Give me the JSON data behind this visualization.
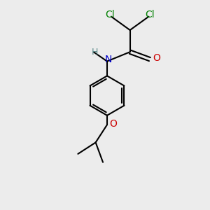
{
  "bg_color": "#ececec",
  "bond_color": "#000000",
  "bond_width": 1.5,
  "atom_colors": {
    "Cl": "#008000",
    "N": "#0000cc",
    "O_carbonyl": "#cc0000",
    "O_ether": "#cc0000",
    "H": "#5a8a8a",
    "C": "#000000"
  },
  "font_size_main": 10,
  "font_size_small": 9,
  "scale": 1.0
}
